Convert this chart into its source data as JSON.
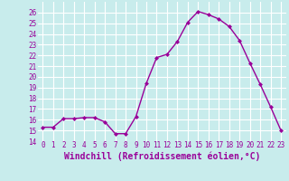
{
  "x": [
    0,
    1,
    2,
    3,
    4,
    5,
    6,
    7,
    8,
    9,
    10,
    11,
    12,
    13,
    14,
    15,
    16,
    17,
    18,
    19,
    20,
    21,
    22,
    23
  ],
  "y": [
    15.3,
    15.3,
    16.1,
    16.1,
    16.2,
    16.2,
    15.8,
    14.7,
    14.7,
    16.3,
    19.4,
    21.8,
    22.1,
    23.3,
    25.1,
    26.1,
    25.8,
    25.4,
    24.7,
    23.4,
    21.3,
    19.3,
    17.2,
    15.0
  ],
  "line_color": "#990099",
  "marker": "D",
  "marker_size": 2.0,
  "bg_color": "#c8ecec",
  "grid_color": "#ffffff",
  "xlabel": "Windchill (Refroidissement éolien,°C)",
  "xlabel_color": "#990099",
  "tick_color": "#990099",
  "ylim": [
    14,
    27
  ],
  "xlim": [
    -0.5,
    23.5
  ],
  "yticks": [
    14,
    15,
    16,
    17,
    18,
    19,
    20,
    21,
    22,
    23,
    24,
    25,
    26
  ],
  "xticks": [
    0,
    1,
    2,
    3,
    4,
    5,
    6,
    7,
    8,
    9,
    10,
    11,
    12,
    13,
    14,
    15,
    16,
    17,
    18,
    19,
    20,
    21,
    22,
    23
  ],
  "tick_fontsize": 5.5,
  "xlabel_fontsize": 7.0,
  "linewidth": 1.0
}
